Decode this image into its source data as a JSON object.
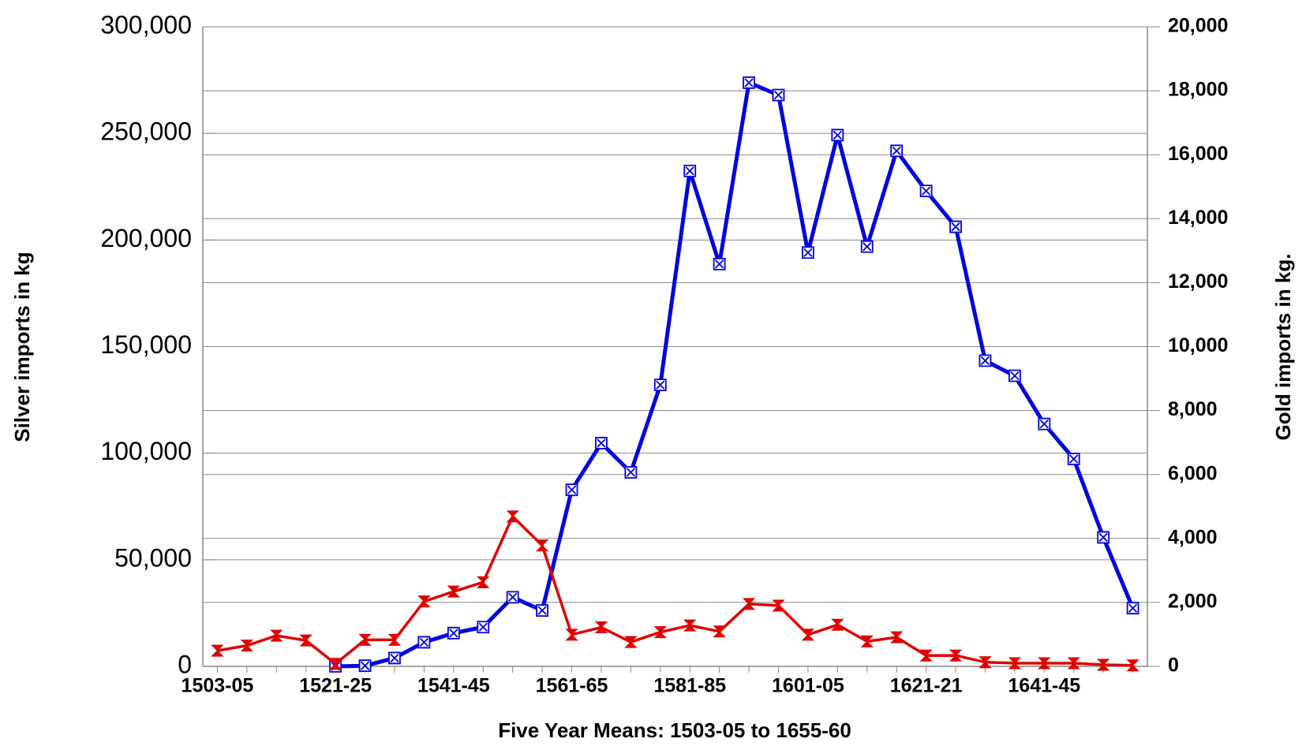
{
  "chart_data": {
    "type": "line",
    "x_label": "Five Year Means: 1503-05 to 1655-60",
    "y_label": "Silver imports in kg",
    "y2_label": "Gold imports in kg.",
    "categories": [
      "1503-05",
      null,
      null,
      null,
      "1521-25",
      null,
      null,
      null,
      "1541-45",
      null,
      null,
      null,
      "1561-65",
      null,
      null,
      null,
      "1581-85",
      null,
      null,
      null,
      "1601-05",
      null,
      null,
      null,
      "1621-21",
      null,
      null,
      null,
      "1641-45",
      null,
      null,
      null
    ],
    "series": [
      {
        "color": "#0000e0",
        "axis": "y",
        "marker": "square",
        "values": [
          null,
          null,
          null,
          null,
          0,
          300,
          3900,
          11300,
          15600,
          18400,
          32400,
          26200,
          82800,
          104700,
          91000,
          132000,
          232400,
          188700,
          273800,
          268000,
          194100,
          249200,
          196900,
          241800,
          223000,
          206200,
          143400,
          136300,
          113700,
          97300,
          60500,
          27300
        ]
      },
      {
        "color": "#e00000",
        "axis": "y2",
        "marker": "hourglass",
        "values": [
          490,
          650,
          960,
          810,
          80,
          830,
          830,
          2030,
          2340,
          2630,
          4690,
          3780,
          990,
          1220,
          760,
          1070,
          1280,
          1090,
          1950,
          1900,
          990,
          1300,
          780,
          910,
          340,
          340,
          130,
          100,
          100,
          100,
          50,
          30
        ]
      }
    ],
    "ylim": [
      0,
      300000
    ],
    "yticks": [
      0,
      {
        "value": 50000,
        "label": "50,000"
      },
      {
        "value": 100000,
        "label": "100,000"
      },
      {
        "value": 150000,
        "label": "150,000"
      },
      {
        "value": 200000,
        "label": "200,000"
      },
      {
        "value": 250000,
        "label": "250,000"
      },
      {
        "value": 300000,
        "label": "300,000"
      }
    ],
    "y2lim": [
      0,
      20000
    ],
    "y2ticks": [
      0,
      {
        "value": 2000,
        "label": "2,000"
      },
      {
        "value": 4000,
        "label": "4,000"
      },
      {
        "value": 6000,
        "label": "6,000"
      },
      {
        "value": 8000,
        "label": "8,000"
      },
      {
        "value": 10000,
        "label": "10,000"
      },
      {
        "value": 12000,
        "label": "12,000"
      },
      {
        "value": 14000,
        "label": "14,000"
      },
      {
        "value": 16000,
        "label": "16,000"
      },
      {
        "value": 18000,
        "label": "18,000"
      },
      {
        "value": 20000,
        "label": "20,000"
      }
    ],
    "grid": true
  }
}
